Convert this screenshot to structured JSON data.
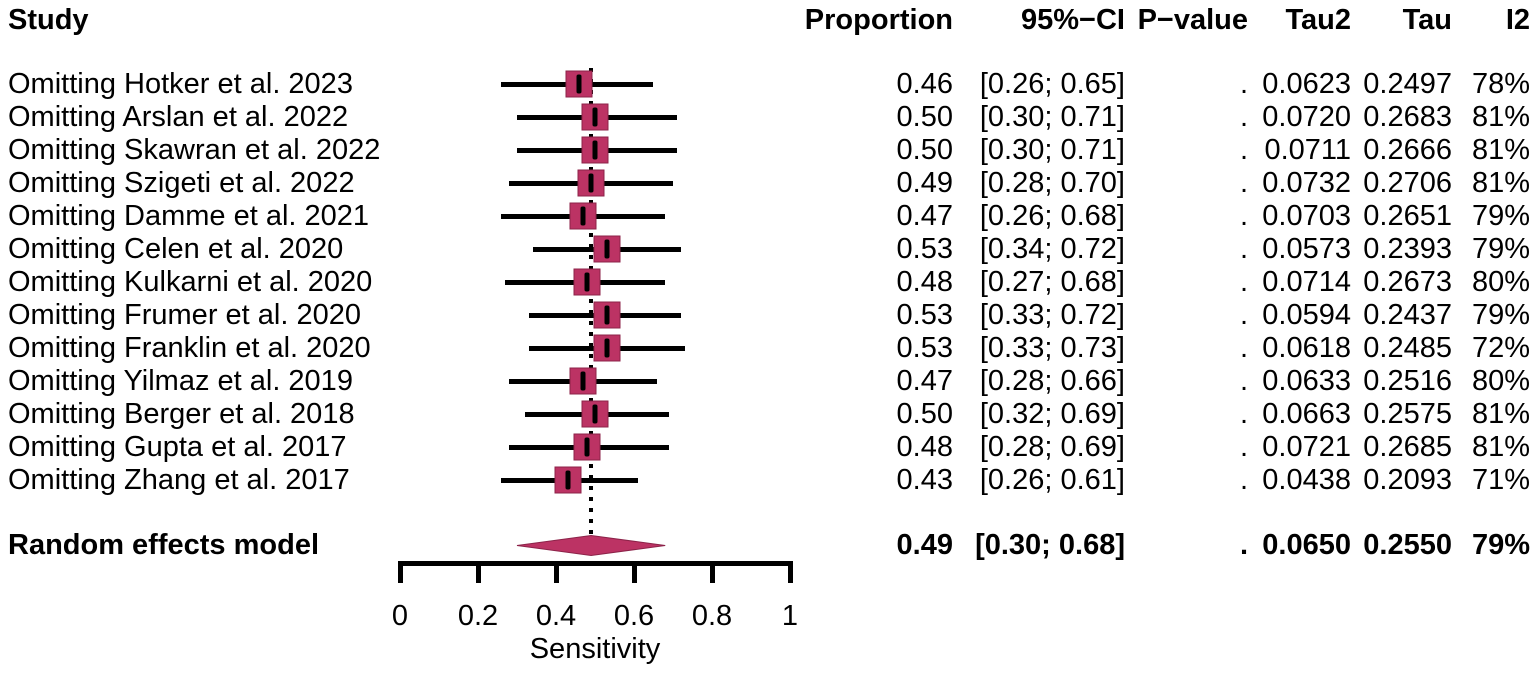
{
  "chart_data": {
    "type": "forest",
    "title": "",
    "xlabel": "Sensitivity",
    "xlim": [
      0,
      1
    ],
    "x_ticks": [
      0,
      0.2,
      0.4,
      0.6,
      0.8,
      1
    ],
    "x_tick_labels": [
      "0",
      "0.2",
      "0.4",
      "0.6",
      "0.8",
      "1"
    ],
    "grid": false,
    "reference_line": 0.49,
    "columns": {
      "study": "Study",
      "proportion": "Proportion",
      "ci": "95%−CI",
      "pvalue": "P−value",
      "tau2": "Tau2",
      "tau": "Tau",
      "i2": "I2"
    },
    "studies": [
      {
        "label": "Omitting Hotker et al. 2023",
        "proportion": 0.46,
        "ci_low": 0.26,
        "ci_high": 0.65,
        "proportion_text": "0.46",
        "ci_text": "[0.26; 0.65]",
        "pvalue_text": ".",
        "tau2_text": "0.0623",
        "tau_text": "0.2497",
        "i2_text": "78%"
      },
      {
        "label": "Omitting Arslan et al. 2022",
        "proportion": 0.5,
        "ci_low": 0.3,
        "ci_high": 0.71,
        "proportion_text": "0.50",
        "ci_text": "[0.30; 0.71]",
        "pvalue_text": ".",
        "tau2_text": "0.0720",
        "tau_text": "0.2683",
        "i2_text": "81%"
      },
      {
        "label": "Omitting Skawran et al. 2022",
        "proportion": 0.5,
        "ci_low": 0.3,
        "ci_high": 0.71,
        "proportion_text": "0.50",
        "ci_text": "[0.30; 0.71]",
        "pvalue_text": ".",
        "tau2_text": "0.0711",
        "tau_text": "0.2666",
        "i2_text": "81%"
      },
      {
        "label": "Omitting Szigeti et al. 2022",
        "proportion": 0.49,
        "ci_low": 0.28,
        "ci_high": 0.7,
        "proportion_text": "0.49",
        "ci_text": "[0.28; 0.70]",
        "pvalue_text": ".",
        "tau2_text": "0.0732",
        "tau_text": "0.2706",
        "i2_text": "81%"
      },
      {
        "label": "Omitting Damme et al. 2021",
        "proportion": 0.47,
        "ci_low": 0.26,
        "ci_high": 0.68,
        "proportion_text": "0.47",
        "ci_text": "[0.26; 0.68]",
        "pvalue_text": ".",
        "tau2_text": "0.0703",
        "tau_text": "0.2651",
        "i2_text": "79%"
      },
      {
        "label": "Omitting Celen et al. 2020",
        "proportion": 0.53,
        "ci_low": 0.34,
        "ci_high": 0.72,
        "proportion_text": "0.53",
        "ci_text": "[0.34; 0.72]",
        "pvalue_text": ".",
        "tau2_text": "0.0573",
        "tau_text": "0.2393",
        "i2_text": "79%"
      },
      {
        "label": "Omitting Kulkarni et al. 2020",
        "proportion": 0.48,
        "ci_low": 0.27,
        "ci_high": 0.68,
        "proportion_text": "0.48",
        "ci_text": "[0.27; 0.68]",
        "pvalue_text": ".",
        "tau2_text": "0.0714",
        "tau_text": "0.2673",
        "i2_text": "80%"
      },
      {
        "label": "Omitting Frumer et al. 2020",
        "proportion": 0.53,
        "ci_low": 0.33,
        "ci_high": 0.72,
        "proportion_text": "0.53",
        "ci_text": "[0.33; 0.72]",
        "pvalue_text": ".",
        "tau2_text": "0.0594",
        "tau_text": "0.2437",
        "i2_text": "79%"
      },
      {
        "label": "Omitting Franklin et al. 2020",
        "proportion": 0.53,
        "ci_low": 0.33,
        "ci_high": 0.73,
        "proportion_text": "0.53",
        "ci_text": "[0.33; 0.73]",
        "pvalue_text": ".",
        "tau2_text": "0.0618",
        "tau_text": "0.2485",
        "i2_text": "72%"
      },
      {
        "label": "Omitting Yilmaz et al. 2019",
        "proportion": 0.47,
        "ci_low": 0.28,
        "ci_high": 0.66,
        "proportion_text": "0.47",
        "ci_text": "[0.28; 0.66]",
        "pvalue_text": ".",
        "tau2_text": "0.0633",
        "tau_text": "0.2516",
        "i2_text": "80%"
      },
      {
        "label": "Omitting Berger et al. 2018",
        "proportion": 0.5,
        "ci_low": 0.32,
        "ci_high": 0.69,
        "proportion_text": "0.50",
        "ci_text": "[0.32; 0.69]",
        "pvalue_text": ".",
        "tau2_text": "0.0663",
        "tau_text": "0.2575",
        "i2_text": "81%"
      },
      {
        "label": "Omitting Gupta et al. 2017",
        "proportion": 0.48,
        "ci_low": 0.28,
        "ci_high": 0.69,
        "proportion_text": "0.48",
        "ci_text": "[0.28; 0.69]",
        "pvalue_text": ".",
        "tau2_text": "0.0721",
        "tau_text": "0.2685",
        "i2_text": "81%"
      },
      {
        "label": "Omitting Zhang et al. 2017",
        "proportion": 0.43,
        "ci_low": 0.26,
        "ci_high": 0.61,
        "proportion_text": "0.43",
        "ci_text": "[0.26; 0.61]",
        "pvalue_text": ".",
        "tau2_text": "0.0438",
        "tau_text": "0.2093",
        "i2_text": "71%"
      }
    ],
    "summary": {
      "label": "Random effects model",
      "proportion": 0.49,
      "ci_low": 0.3,
      "ci_high": 0.68,
      "proportion_text": "0.49",
      "ci_text": "[0.30; 0.68]",
      "pvalue_text": ".",
      "tau2_text": "0.0650",
      "tau_text": "0.2550",
      "i2_text": "79%"
    },
    "colors": {
      "square": "#BC3364",
      "square_border": "#8C2349",
      "diamond": "#BC3364",
      "diamond_border": "#8C2349",
      "line": "#000000"
    }
  }
}
